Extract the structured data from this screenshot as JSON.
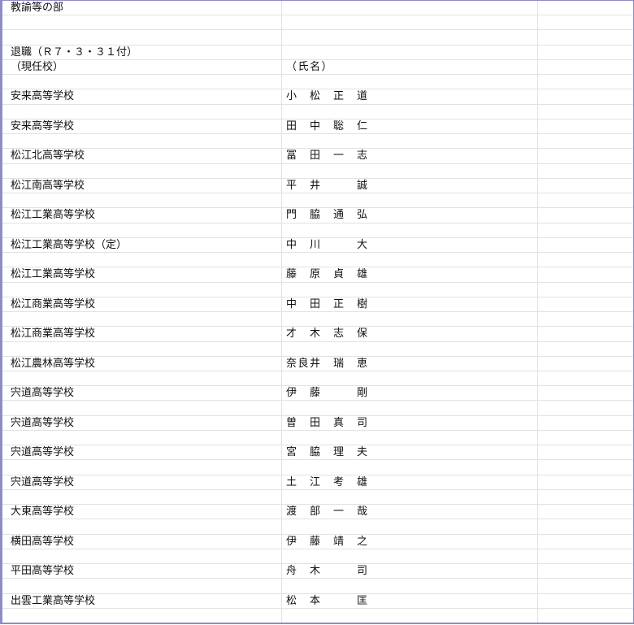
{
  "title": "教諭等の部",
  "section": "退職（Ｒ７・３・３１付）",
  "headers": {
    "school": "（現任校）",
    "name": "（氏名）"
  },
  "entries": [
    {
      "school": "安来高等学校",
      "name": "小　松　正　道"
    },
    {
      "school": "安来高等学校",
      "name": "田　中　聡　仁"
    },
    {
      "school": "松江北高等学校",
      "name": "冨　田　一　志"
    },
    {
      "school": "松江南高等学校",
      "name": "平　井　　　誠"
    },
    {
      "school": "松江工業高等学校",
      "name": "門　脇　通　弘"
    },
    {
      "school": "松江工業高等学校（定）",
      "name": "中　川　　　大"
    },
    {
      "school": "松江工業高等学校",
      "name": "藤　原　貞　雄"
    },
    {
      "school": "松江商業高等学校",
      "name": "中　田　正　樹"
    },
    {
      "school": "松江商業高等学校",
      "name": "才　木　志　保"
    },
    {
      "school": "松江農林高等学校",
      "name": "奈良井　瑞　恵"
    },
    {
      "school": "宍道高等学校",
      "name": "伊　藤　　　剛"
    },
    {
      "school": "宍道高等学校",
      "name": "曽　田　真　司"
    },
    {
      "school": "宍道高等学校",
      "name": "宮　脇　理　夫"
    },
    {
      "school": "宍道高等学校",
      "name": "土　江　考　雄"
    },
    {
      "school": "大東高等学校",
      "name": "渡　部　一　哉"
    },
    {
      "school": "横田高等学校",
      "name": "伊　藤　靖　之"
    },
    {
      "school": "平田高等学校",
      "name": "舟　木　　　司"
    },
    {
      "school": "出雲工業高等学校",
      "name": "松　本　　　匡"
    }
  ]
}
